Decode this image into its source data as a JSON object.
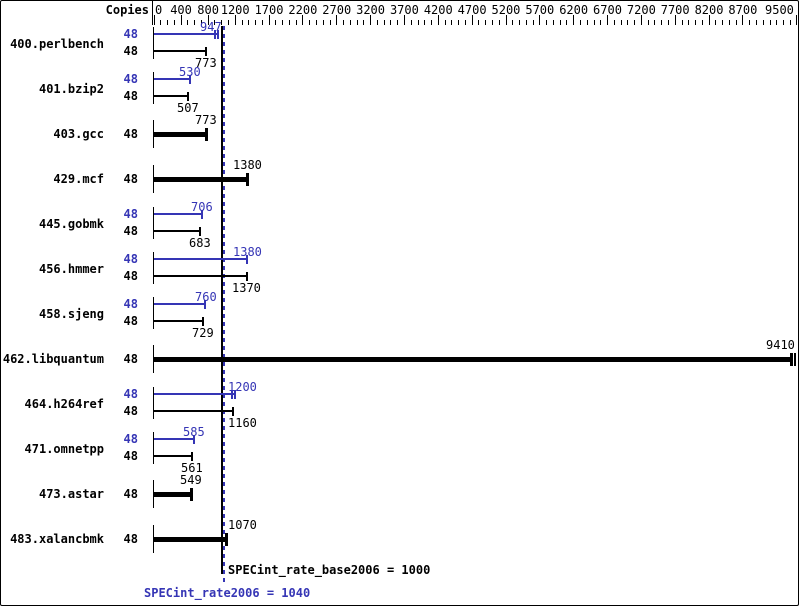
{
  "header": {
    "copies_label": "Copies"
  },
  "footer": {
    "base_text": "SPECint_rate_base2006 = 1000",
    "peak_text": "SPECint_rate2006 = 1040"
  },
  "colors": {
    "peak_blue": "#3535b5",
    "base_black": "#000000",
    "background": "#ffffff"
  },
  "chart_data": {
    "type": "bar",
    "orientation": "horizontal",
    "title": "",
    "x_axis": {
      "position": "top",
      "min": 0,
      "max": 9520,
      "major_ticks": [
        0,
        400,
        800,
        1200,
        1700,
        2200,
        2700,
        3200,
        3700,
        4200,
        4700,
        5200,
        5700,
        6200,
        6700,
        7200,
        7700,
        8200,
        8700,
        9500
      ],
      "minor_tick_step": 100,
      "grid": false
    },
    "legend": "none",
    "copies_column_header": "Copies",
    "series": [
      {
        "name": "peak",
        "color_key": "peak_blue"
      },
      {
        "name": "base",
        "color_key": "base_black"
      }
    ],
    "benchmarks": [
      {
        "name": "400.perlbench",
        "copies": 48,
        "peak": 947,
        "base": 773,
        "double_cap": true
      },
      {
        "name": "401.bzip2",
        "copies": 48,
        "peak": 530,
        "base": 507,
        "double_cap": false
      },
      {
        "name": "403.gcc",
        "copies": 48,
        "peak": 773,
        "base": 773,
        "double_cap": false
      },
      {
        "name": "429.mcf",
        "copies": 48,
        "peak": 1380,
        "base": 1380,
        "double_cap": false
      },
      {
        "name": "445.gobmk",
        "copies": 48,
        "peak": 706,
        "base": 683,
        "double_cap": false
      },
      {
        "name": "456.hmmer",
        "copies": 48,
        "peak": 1380,
        "base": 1370,
        "double_cap": false
      },
      {
        "name": "458.sjeng",
        "copies": 48,
        "peak": 760,
        "base": 729,
        "double_cap": false
      },
      {
        "name": "462.libquantum",
        "copies": 48,
        "peak": 9410,
        "base": 9410,
        "double_cap": true
      },
      {
        "name": "464.h264ref",
        "copies": 48,
        "peak": 1200,
        "base": 1160,
        "double_cap": true
      },
      {
        "name": "471.omnetpp",
        "copies": 48,
        "peak": 585,
        "base": 561,
        "double_cap": false
      },
      {
        "name": "473.astar",
        "copies": 48,
        "peak": 549,
        "base": 549,
        "double_cap": false
      },
      {
        "name": "483.xalancbmk",
        "copies": 48,
        "peak": 1070,
        "base": 1070,
        "double_cap": false
      }
    ],
    "reference_lines": [
      {
        "metric": "SPECint_rate_base2006",
        "value": 1000,
        "color": "black",
        "style": "solid"
      },
      {
        "metric": "SPECint_rate2006",
        "value": 1040,
        "color": "blue",
        "style": "dashed"
      }
    ],
    "metrics": {
      "SPECint_rate_base2006": 1000,
      "SPECint_rate2006": 1040
    }
  }
}
